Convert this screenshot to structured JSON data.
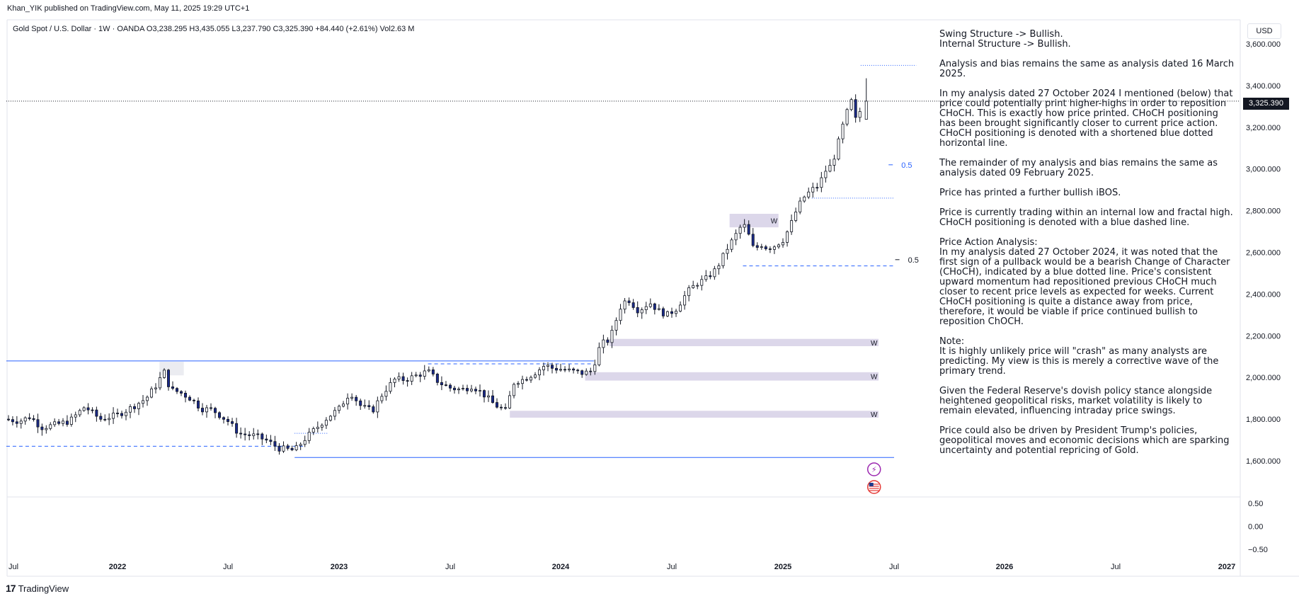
{
  "header": {
    "published": "Khan_YIK published on TradingView.com, May 11, 2025 19:29 UTC+1",
    "symbol_line": "Gold Spot / U.S. Dollar · 1W · OANDA  O3,238.295  H3,435.055  L3,237.790  C3,325.390  +84.440 (+2.61%)  Vol2.63 M"
  },
  "currency_button": "USD",
  "last_price_label": "3,325.390",
  "footer": {
    "logo": "17",
    "brand": "TradingView"
  },
  "notes": [
    "Swing Structure -> Bullish.\nInternal Structure -> Bullish.",
    "Analysis and bias remains the same as analysis dated 16 March 2025.",
    "In my analysis dated 27 October 2024 I mentioned (below) that price could potentially print higher-highs in order to reposition CHoCH.  This is exactly how price printed.  CHoCH positioning has been brought significantly closer to current price action.  CHoCH positioning is denoted with a shortened blue dotted horizontal line.",
    "The remainder of my analysis and bias remains the same as analysis dated 09 February 2025.",
    "Price has printed a further bullish iBOS.",
    "Price is currently trading within an internal low and fractal high.  CHoCH positioning is denoted with a blue dashed line.",
    "Price Action Analysis:\nIn my analysis dated 27 October 2024, it was noted that the first sign of a pullback would be a bearish Change of Character (CHoCH), indicated by a blue dotted line. Price's consistent upward momentum had repositioned previous CHoCH much closer to recent price levels as expected for weeks. Current CHoCH positioning is quite a distance away from price, therefore, it would be viable if price continued bullish to reposition ChOCH.",
    "Note:\nIt is highly unlikely price will \"crash\" as many analysts are predicting.  My view is this is merely a corrective wave of the primary trend.",
    "Given the Federal Reserve's dovish policy stance alongside heightened geopolitical risks, market volatility is likely to remain elevated, influencing intraday price swings.",
    "Price could also be driven by President Trump's policies, geopolitical moves and economic decisions which are sparking uncertainty and potential repricing of Gold."
  ],
  "chart_data": {
    "type": "candlestick",
    "title": "Gold Spot / U.S. Dollar · 1W · OANDA",
    "last_close": 3325.39,
    "y_ticks": [
      1600,
      1800,
      2000,
      2200,
      2400,
      2600,
      2800,
      3000,
      3200,
      3400,
      3600
    ],
    "y_tick_labels": [
      "1,600.000",
      "1,800.000",
      "2,000.000",
      "2,200.000",
      "2,400.000",
      "2,600.000",
      "2,800.000",
      "3,000.000",
      "3,200.000",
      "3,400.000",
      "3,600.000"
    ],
    "ylim": [
      1420,
      3640
    ],
    "x_tick_labels": [
      "Jul",
      "2022",
      "Jul",
      "2023",
      "Jul",
      "2024",
      "Jul",
      "2025",
      "Jul",
      "2026",
      "Jul",
      "2027"
    ],
    "x_tick_major": [
      false,
      true,
      false,
      true,
      false,
      true,
      false,
      true,
      false,
      true,
      false,
      true
    ],
    "x_ticks_year": [
      2021.5,
      2022,
      2022.5,
      2023,
      2023.5,
      2024,
      2024.5,
      2025,
      2025.5,
      2026,
      2026.5,
      2027
    ],
    "xlim": [
      2021.49,
      2027.1
    ],
    "oscillator": {
      "ticks": [
        0.5,
        0.0,
        -0.5
      ],
      "labels": [
        "0.50",
        "0.00",
        "−0.50"
      ],
      "ylim": [
        -0.75,
        0.85
      ]
    },
    "path": [
      [
        2021.49,
        1800
      ],
      [
        2021.55,
        1790
      ],
      [
        2021.6,
        1812
      ],
      [
        2021.65,
        1760
      ],
      [
        2021.7,
        1770
      ],
      [
        2021.78,
        1790
      ],
      [
        2021.85,
        1860
      ],
      [
        2021.92,
        1800
      ],
      [
        2022.0,
        1820
      ],
      [
        2022.07,
        1860
      ],
      [
        2022.13,
        1900
      ],
      [
        2022.18,
        1970
      ],
      [
        2022.21,
        2030
      ],
      [
        2022.24,
        1940
      ],
      [
        2022.28,
        1930
      ],
      [
        2022.33,
        1900
      ],
      [
        2022.38,
        1850
      ],
      [
        2022.43,
        1845
      ],
      [
        2022.5,
        1790
      ],
      [
        2022.55,
        1730
      ],
      [
        2022.62,
        1720
      ],
      [
        2022.67,
        1700
      ],
      [
        2022.73,
        1660
      ],
      [
        2022.8,
        1650
      ],
      [
        2022.85,
        1710
      ],
      [
        2022.9,
        1760
      ],
      [
        2022.95,
        1810
      ],
      [
        2023.0,
        1850
      ],
      [
        2023.05,
        1930
      ],
      [
        2023.1,
        1860
      ],
      [
        2023.15,
        1840
      ],
      [
        2023.2,
        1930
      ],
      [
        2023.25,
        1990
      ],
      [
        2023.3,
        1990
      ],
      [
        2023.35,
        2010
      ],
      [
        2023.4,
        2030
      ],
      [
        2023.45,
        1975
      ],
      [
        2023.5,
        1950
      ],
      [
        2023.55,
        1940
      ],
      [
        2023.6,
        1960
      ],
      [
        2023.65,
        1920
      ],
      [
        2023.7,
        1870
      ],
      [
        2023.75,
        1840
      ],
      [
        2023.79,
        1980
      ],
      [
        2023.83,
        1990
      ],
      [
        2023.88,
        2020
      ],
      [
        2023.93,
        2060
      ],
      [
        2023.96,
        2045
      ],
      [
        2024.0,
        2040
      ],
      [
        2024.05,
        2030
      ],
      [
        2024.1,
        2020
      ],
      [
        2024.14,
        2030
      ],
      [
        2024.18,
        2160
      ],
      [
        2024.22,
        2180
      ],
      [
        2024.27,
        2340
      ],
      [
        2024.3,
        2380
      ],
      [
        2024.35,
        2320
      ],
      [
        2024.4,
        2360
      ],
      [
        2024.44,
        2320
      ],
      [
        2024.48,
        2300
      ],
      [
        2024.52,
        2330
      ],
      [
        2024.57,
        2410
      ],
      [
        2024.61,
        2450
      ],
      [
        2024.65,
        2470
      ],
      [
        2024.7,
        2520
      ],
      [
        2024.75,
        2620
      ],
      [
        2024.78,
        2670
      ],
      [
        2024.82,
        2740
      ],
      [
        2024.84,
        2700
      ],
      [
        2024.87,
        2610
      ],
      [
        2024.9,
        2640
      ],
      [
        2024.93,
        2620
      ],
      [
        2024.96,
        2630
      ],
      [
        2025.0,
        2660
      ],
      [
        2025.03,
        2720
      ],
      [
        2025.06,
        2800
      ],
      [
        2025.09,
        2860
      ],
      [
        2025.13,
        2900
      ],
      [
        2025.16,
        2920
      ],
      [
        2025.19,
        2990
      ],
      [
        2025.22,
        3020
      ],
      [
        2025.25,
        3130
      ],
      [
        2025.28,
        3250
      ],
      [
        2025.31,
        3330
      ],
      [
        2025.33,
        3220
      ],
      [
        2025.36,
        3325
      ]
    ],
    "zones": [
      {
        "label": "W",
        "from": 2024.76,
        "to": 2024.98,
        "low": 2720,
        "high": 2785,
        "label_at": 2024.96
      },
      {
        "label": "W",
        "from": 2024.22,
        "to": 2025.43,
        "low": 2150,
        "high": 2185,
        "label_at": 2025.41
      },
      {
        "label": "W",
        "from": 2024.11,
        "to": 2025.43,
        "low": 1985,
        "high": 2025,
        "label_at": 2025.41
      },
      {
        "label": "W",
        "from": 2023.77,
        "to": 2025.43,
        "low": 1807,
        "high": 1840,
        "label_at": 2025.41
      },
      {
        "label": "",
        "from": 2022.19,
        "to": 2022.3,
        "low": 2010,
        "high": 2075,
        "label_at": 0
      }
    ],
    "levels": [
      {
        "price": 3325.39,
        "from": 2021.49,
        "to": 2026.9,
        "style": "last"
      },
      {
        "price": 3497,
        "from": 2025.35,
        "to": 2025.6,
        "style": "dotted"
      },
      {
        "price": 2860,
        "from": 2025.13,
        "to": 2025.5,
        "style": "dotted"
      },
      {
        "price": 2535,
        "from": 2024.82,
        "to": 2025.5,
        "style": "dashed"
      },
      {
        "price": 2079,
        "from": 2021.49,
        "to": 2024.15,
        "style": "solid"
      },
      {
        "price": 2065,
        "from": 2023.4,
        "to": 2024.15,
        "style": "dashed"
      },
      {
        "price": 1670,
        "from": 2021.49,
        "to": 2022.85,
        "style": "dashed"
      },
      {
        "price": 1616,
        "from": 2022.8,
        "to": 2025.5,
        "style": "solid"
      },
      {
        "price": 1732,
        "from": 2022.8,
        "to": 2022.95,
        "style": "dotted"
      }
    ],
    "fib_labels": [
      {
        "label": "0.5",
        "price": 3020,
        "at": 2025.52
      },
      {
        "label": "0.5",
        "price": 2565,
        "at": 2025.55
      }
    ]
  }
}
